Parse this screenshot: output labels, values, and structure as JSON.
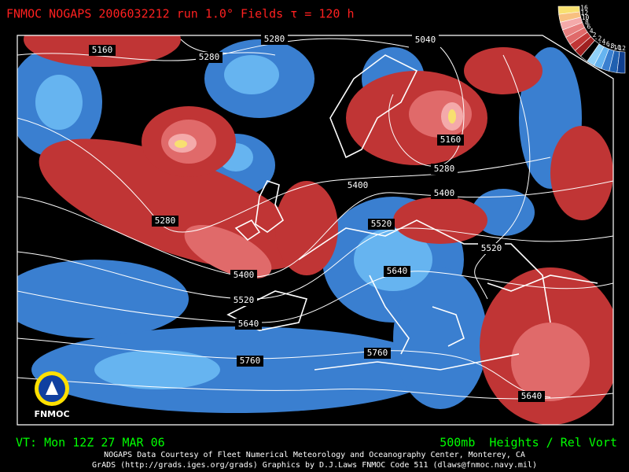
{
  "header": {
    "title": "FNMOC NOGAPS 2006032212 run 1.0° Fields τ = 120 h"
  },
  "colorbar": {
    "labels": [
      "16",
      "12",
      "10",
      "8",
      "6",
      "4",
      "2",
      "-2",
      "-4",
      "-6",
      "-8",
      "-10",
      "-12"
    ]
  },
  "contour_labels": [
    "5160",
    "5280",
    "5280",
    "5040",
    "5160",
    "5280",
    "5400",
    "5400",
    "5280",
    "5520",
    "5520",
    "5400",
    "5520",
    "5640",
    "5640",
    "5760",
    "5760",
    "5640"
  ],
  "logo": {
    "text": "FNMOC"
  },
  "footer": {
    "valid_time": "VT: Mon 12Z 27 MAR 06",
    "field": "500mb  Heights / Rel Vort",
    "credit_line_1": "NOGAPS Data Courtesy of Fleet Numerical Meteorology and Oceanography Center, Monterey, CA",
    "credit_line_2": "GrADS (http://grads.iges.org/grads) Graphics by D.J.Laws FNMOC Code 511 (dlaws@fnmoc.navy.mil)"
  }
}
